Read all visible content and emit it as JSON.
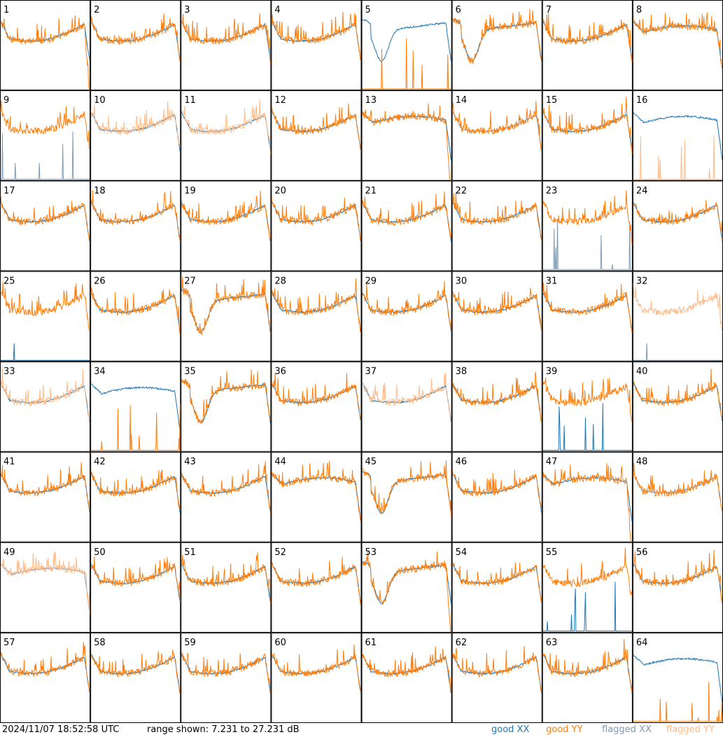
{
  "footer": {
    "timestamp": "2024/11/07 18:52:58 UTC",
    "range_text": "range shown: 7.231 to 27.231 dB"
  },
  "legend": [
    {
      "label": "good XX",
      "color": "#1f77b4"
    },
    {
      "label": "good YY",
      "color": "#ff7f0e"
    },
    {
      "label": "flagged XX",
      "color": "#7f9bb5"
    },
    {
      "label": "flagged YY",
      "color": "#ffbb88"
    }
  ],
  "chart_data": {
    "type": "line",
    "layout": "small-multiples 8x8",
    "ylim": [
      7.231,
      27.231
    ],
    "yunit": "dB",
    "panels": [
      {
        "id": "1",
        "xx": "good",
        "yy": "good",
        "profile": "normal",
        "yy_end": "drop"
      },
      {
        "id": "2",
        "xx": "good",
        "yy": "good",
        "profile": "normal"
      },
      {
        "id": "3",
        "xx": "good",
        "yy": "good",
        "profile": "normal"
      },
      {
        "id": "4",
        "xx": "good",
        "yy": "good",
        "profile": "normal"
      },
      {
        "id": "5",
        "xx": "good",
        "yy": "good",
        "profile": "dip",
        "yy_state": "spiky-floor"
      },
      {
        "id": "6",
        "xx": "good",
        "yy": "good",
        "profile": "dip"
      },
      {
        "id": "7",
        "xx": "good",
        "yy": "good",
        "profile": "normal"
      },
      {
        "id": "8",
        "xx": "good",
        "yy": "good",
        "profile": "flat"
      },
      {
        "id": "9",
        "xx": "flagged",
        "yy": "good",
        "profile": "normal",
        "xx_state": "spiky-floor"
      },
      {
        "id": "10",
        "xx": "good",
        "yy": "flagged",
        "profile": "normal"
      },
      {
        "id": "11",
        "xx": "good",
        "yy": "flagged",
        "profile": "normal"
      },
      {
        "id": "12",
        "xx": "good",
        "yy": "good",
        "profile": "normal"
      },
      {
        "id": "13",
        "xx": "good",
        "yy": "good",
        "profile": "flat",
        "yy_end": "drop"
      },
      {
        "id": "14",
        "xx": "flagged",
        "yy": "good",
        "profile": "normal"
      },
      {
        "id": "15",
        "xx": "good",
        "yy": "good",
        "profile": "normal"
      },
      {
        "id": "16",
        "xx": "good",
        "yy": "flagged",
        "profile": "flat",
        "yy_state": "spiky-floor"
      },
      {
        "id": "17",
        "xx": "good",
        "yy": "good",
        "profile": "normal"
      },
      {
        "id": "18",
        "xx": "good",
        "yy": "good",
        "profile": "normal"
      },
      {
        "id": "19",
        "xx": "good",
        "yy": "good",
        "profile": "normal"
      },
      {
        "id": "20",
        "xx": "good",
        "yy": "good",
        "profile": "normal"
      },
      {
        "id": "21",
        "xx": "good",
        "yy": "good",
        "profile": "normal"
      },
      {
        "id": "22",
        "xx": "good",
        "yy": "good",
        "profile": "normal"
      },
      {
        "id": "23",
        "xx": "flagged",
        "yy": "good",
        "profile": "normal",
        "xx_state": "spiky-floor"
      },
      {
        "id": "24",
        "xx": "good",
        "yy": "good",
        "profile": "normal"
      },
      {
        "id": "25",
        "xx": "good",
        "yy": "good",
        "profile": "normal",
        "xx_state": "floor"
      },
      {
        "id": "26",
        "xx": "good",
        "yy": "good",
        "profile": "normal"
      },
      {
        "id": "27",
        "xx": "good",
        "yy": "good",
        "profile": "dip"
      },
      {
        "id": "28",
        "xx": "good",
        "yy": "good",
        "profile": "normal"
      },
      {
        "id": "29",
        "xx": "good",
        "yy": "good",
        "profile": "normal"
      },
      {
        "id": "30",
        "xx": "good",
        "yy": "good",
        "profile": "normal"
      },
      {
        "id": "31",
        "xx": "good",
        "yy": "good",
        "profile": "normal"
      },
      {
        "id": "32",
        "xx": "flagged",
        "yy": "flagged",
        "profile": "normal",
        "xx_state": "floor"
      },
      {
        "id": "33",
        "xx": "good",
        "yy": "flagged",
        "profile": "normal"
      },
      {
        "id": "34",
        "xx": "good",
        "yy": "good",
        "profile": "flat",
        "yy_state": "spiky-floor"
      },
      {
        "id": "35",
        "xx": "good",
        "yy": "good",
        "profile": "dip"
      },
      {
        "id": "36",
        "xx": "good",
        "yy": "good",
        "profile": "normal"
      },
      {
        "id": "37",
        "xx": "good",
        "yy": "flagged",
        "profile": "normal"
      },
      {
        "id": "38",
        "xx": "good",
        "yy": "good",
        "profile": "normal"
      },
      {
        "id": "39",
        "xx": "good",
        "yy": "good",
        "profile": "normal",
        "xx_state": "spiky-floor"
      },
      {
        "id": "40",
        "xx": "good",
        "yy": "good",
        "profile": "normal"
      },
      {
        "id": "41",
        "xx": "good",
        "yy": "good",
        "profile": "normal"
      },
      {
        "id": "42",
        "xx": "good",
        "yy": "good",
        "profile": "normal"
      },
      {
        "id": "43",
        "xx": "good",
        "yy": "good",
        "profile": "normal"
      },
      {
        "id": "44",
        "xx": "good",
        "yy": "good",
        "profile": "flat"
      },
      {
        "id": "45",
        "xx": "good",
        "yy": "good",
        "profile": "dip"
      },
      {
        "id": "46",
        "xx": "good",
        "yy": "good",
        "profile": "normal"
      },
      {
        "id": "47",
        "xx": "good",
        "yy": "good",
        "profile": "flat",
        "yy_end": "drop"
      },
      {
        "id": "48",
        "xx": "flagged",
        "yy": "good",
        "profile": "normal"
      },
      {
        "id": "49",
        "xx": "flagged",
        "yy": "flagged",
        "profile": "flat"
      },
      {
        "id": "50",
        "xx": "good",
        "yy": "good",
        "profile": "normal"
      },
      {
        "id": "51",
        "xx": "good",
        "yy": "good",
        "profile": "normal"
      },
      {
        "id": "52",
        "xx": "good",
        "yy": "good",
        "profile": "normal"
      },
      {
        "id": "53",
        "xx": "good",
        "yy": "good",
        "profile": "dip",
        "yy_end": "drop"
      },
      {
        "id": "54",
        "xx": "good",
        "yy": "good",
        "profile": "normal"
      },
      {
        "id": "55",
        "xx": "good",
        "yy": "good",
        "profile": "normal",
        "xx_state": "spiky-floor"
      },
      {
        "id": "56",
        "xx": "good",
        "yy": "good",
        "profile": "normal"
      },
      {
        "id": "57",
        "xx": "good",
        "yy": "good",
        "profile": "normal"
      },
      {
        "id": "58",
        "xx": "good",
        "yy": "good",
        "profile": "normal"
      },
      {
        "id": "59",
        "xx": "good",
        "yy": "good",
        "profile": "normal"
      },
      {
        "id": "60",
        "xx": "good",
        "yy": "good",
        "profile": "normal"
      },
      {
        "id": "61",
        "xx": "good",
        "yy": "good",
        "profile": "normal"
      },
      {
        "id": "62",
        "xx": "good",
        "yy": "good",
        "profile": "normal"
      },
      {
        "id": "63",
        "xx": "good",
        "yy": "good",
        "profile": "normal"
      },
      {
        "id": "64",
        "xx": "good",
        "yy": "good",
        "profile": "flat",
        "yy_state": "spiky-floor"
      }
    ]
  }
}
